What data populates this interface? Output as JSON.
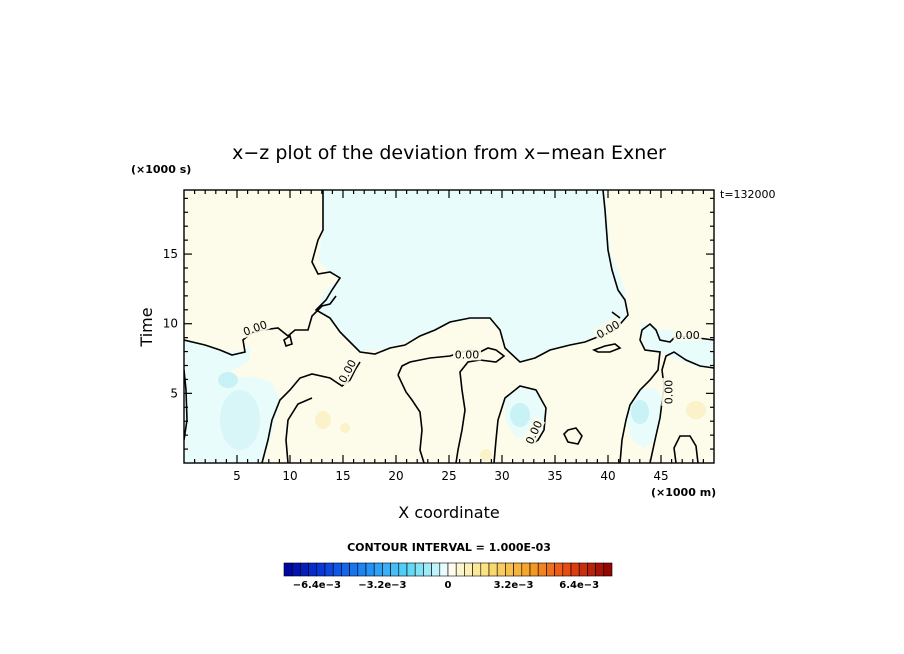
{
  "chart_data": {
    "type": "contour",
    "title": "x−z plot of the deviation from x−mean Exner",
    "xlabel": "X coordinate",
    "ylabel": "Time",
    "x_unit_note": "(×1000 m)",
    "y_unit_note": "(×1000 s)",
    "time_label": "t=132000",
    "xlim": [
      0,
      50
    ],
    "ylim": [
      0,
      19.6
    ],
    "x_ticks": [
      5,
      10,
      15,
      20,
      25,
      30,
      35,
      40,
      45
    ],
    "y_ticks": [
      5,
      10,
      15
    ],
    "contour_level": 0,
    "contour_labels": [
      {
        "text": "0.00",
        "x": 6.7,
        "y": 9.7,
        "rot": -20
      },
      {
        "text": "0.00",
        "x": 15.4,
        "y": 6.6,
        "rot": -62
      },
      {
        "text": "0.00",
        "x": 26.7,
        "y": 7.8,
        "rot": 0
      },
      {
        "text": "0.00",
        "x": 33.0,
        "y": 2.2,
        "rot": -65
      },
      {
        "text": "0.00",
        "x": 40.0,
        "y": 9.6,
        "rot": -30
      },
      {
        "text": "0.00",
        "x": 47.5,
        "y": 9.2,
        "rot": 0
      },
      {
        "text": "0.00",
        "x": 45.7,
        "y": 5.1,
        "rot": -90
      }
    ],
    "contour_interval_label": "CONTOUR INTERVAL = 1.000E-03",
    "colorbar": {
      "min": -0.008,
      "max": 0.008,
      "step": 0.0004,
      "tick_labels": [
        "−6.4e−3",
        "−3.2e−3",
        "0",
        "3.2e−3",
        "6.4e−3"
      ],
      "tick_values": [
        -0.0064,
        -0.0032,
        0,
        0.0032,
        0.0064
      ],
      "low_color": "#00009c",
      "mid_color": "#ffffff",
      "high_color": "#8c0000"
    },
    "field_colors": {
      "negative": "#e8fcfc",
      "positive": "#fdfbea",
      "blob_neg": "#c8f2f5",
      "blob_pos": "#fbf2c9"
    }
  }
}
